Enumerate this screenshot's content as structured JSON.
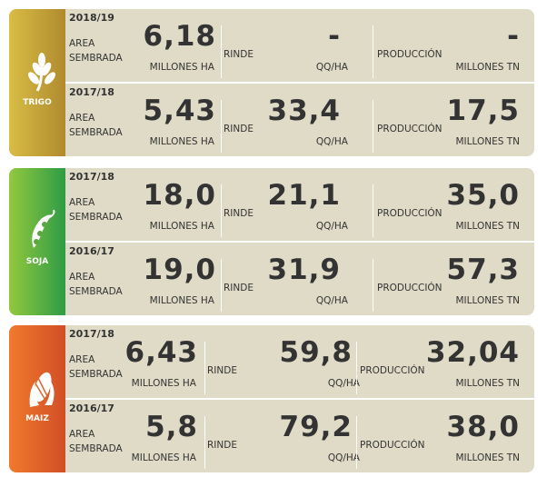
{
  "labels": {
    "area": "AREA SEMBRADA",
    "area_unit": "MILLONES HA",
    "rinde": "RINDE",
    "rinde_unit": "QQ/HA",
    "produccion": "PRODUCCIÓN",
    "produccion_unit": "MILLONES TN"
  },
  "crops": [
    {
      "name": "TRIGO",
      "seasons": [
        {
          "season": "2018/19",
          "area": "6,18",
          "rinde": "-",
          "produccion": "-"
        },
        {
          "season": "2017/18",
          "area": "5,43",
          "rinde": "33,4",
          "produccion": "17,5"
        }
      ]
    },
    {
      "name": "SOJA",
      "seasons": [
        {
          "season": "2017/18",
          "area": "18,0",
          "rinde": "21,1",
          "produccion": "35,0"
        },
        {
          "season": "2016/17",
          "area": "19,0",
          "rinde": "31,9",
          "produccion": "57,3"
        }
      ]
    },
    {
      "name": "MAIZ",
      "seasons": [
        {
          "season": "2017/18",
          "area": "6,43",
          "rinde": "59,8",
          "produccion": "32,04"
        },
        {
          "season": "2016/17",
          "area": "5,8",
          "rinde": "79,2",
          "produccion": "38,0"
        }
      ]
    }
  ]
}
